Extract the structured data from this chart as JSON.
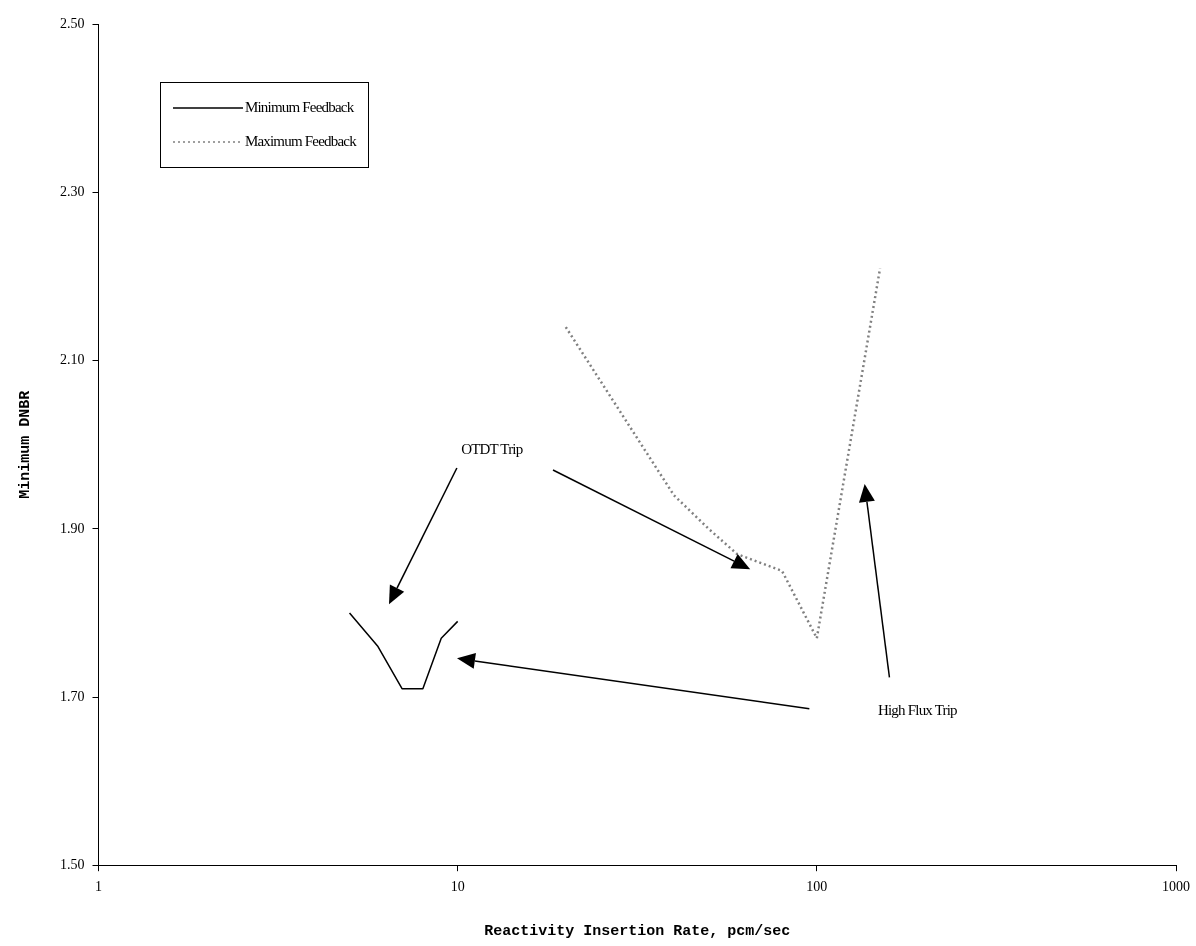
{
  "chart_data": {
    "type": "line",
    "xlabel": "Reactivity Insertion Rate, pcm/sec",
    "ylabel": "Minimum DNBR",
    "log": "x",
    "xlim": [
      1,
      1000
    ],
    "xticks": [
      1,
      10,
      100,
      1000
    ],
    "ylim": [
      1.5,
      2.5
    ],
    "yticks": [
      {
        "value": 1.5,
        "label": "1.50"
      },
      {
        "value": 1.7,
        "label": "1.70"
      },
      {
        "value": 1.9,
        "label": "1.90"
      },
      {
        "value": 2.1,
        "label": "2.10"
      },
      {
        "value": 2.3,
        "label": "2.30"
      },
      {
        "value": 2.5,
        "label": "2.50"
      }
    ],
    "grid": false,
    "legend": "top left",
    "marker": "none",
    "series": [
      {
        "name": "Minimum Feedback",
        "color": "#000000",
        "line_style": "solid",
        "x": [
          5,
          6,
          7,
          8,
          9,
          10
        ],
        "values": [
          1.8,
          1.76,
          1.71,
          1.71,
          1.77,
          1.79
        ]
      },
      {
        "name": "Maximum Feedback",
        "color": "#808080",
        "line_style": "dotted",
        "x": [
          20,
          40,
          50,
          60,
          80,
          100,
          150
        ],
        "values": [
          2.14,
          1.94,
          1.9,
          1.87,
          1.85,
          1.77,
          2.21
        ]
      }
    ],
    "annotations": [
      "OTDT Trip",
      "High Flux Trip"
    ]
  }
}
